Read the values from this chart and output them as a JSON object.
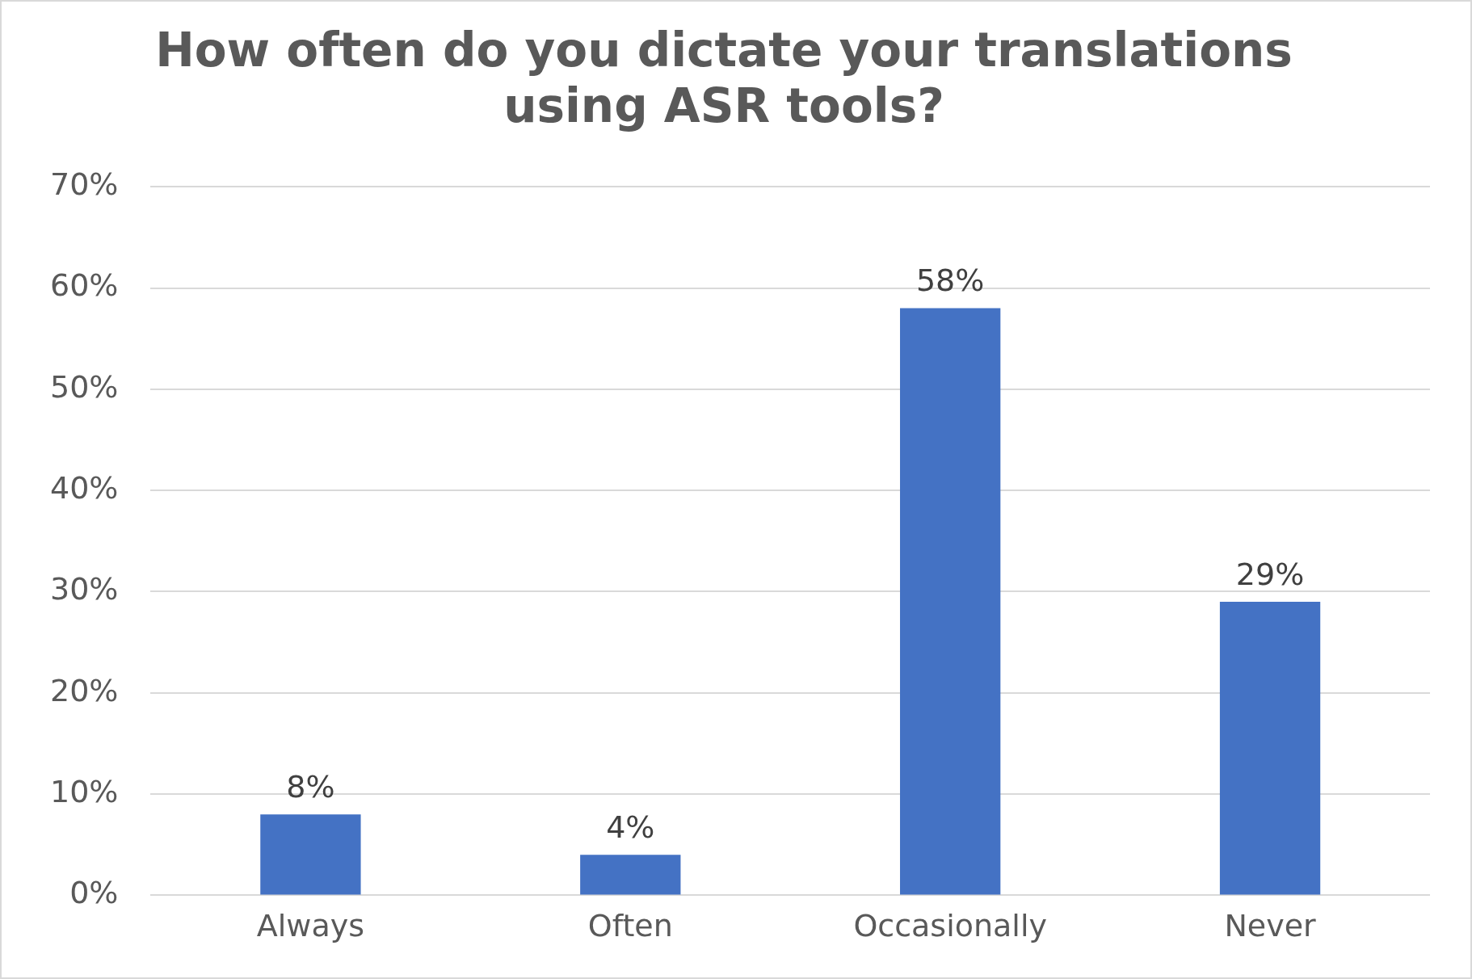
{
  "chart_data": {
    "type": "bar",
    "title": [
      "How often do you dictate your translations",
      "using ASR tools?"
    ],
    "categories": [
      "Always",
      "Often",
      "Occasionally",
      "Never"
    ],
    "series": [
      {
        "color": "#4472c4",
        "values": [
          8,
          4,
          58,
          29
        ],
        "value_labels": [
          "8%",
          "4%",
          "58%",
          "29%"
        ]
      }
    ],
    "ylim": [
      0,
      70
    ],
    "yticks": [
      {
        "value": 0,
        "label": "0%"
      },
      {
        "value": 10,
        "label": "10%"
      },
      {
        "value": 20,
        "label": "20%"
      },
      {
        "value": 30,
        "label": "30%"
      },
      {
        "value": 40,
        "label": "40%"
      },
      {
        "value": 50,
        "label": "50%"
      },
      {
        "value": 60,
        "label": "60%"
      },
      {
        "value": 70,
        "label": "70%"
      }
    ],
    "grid": "y",
    "legend": false
  }
}
